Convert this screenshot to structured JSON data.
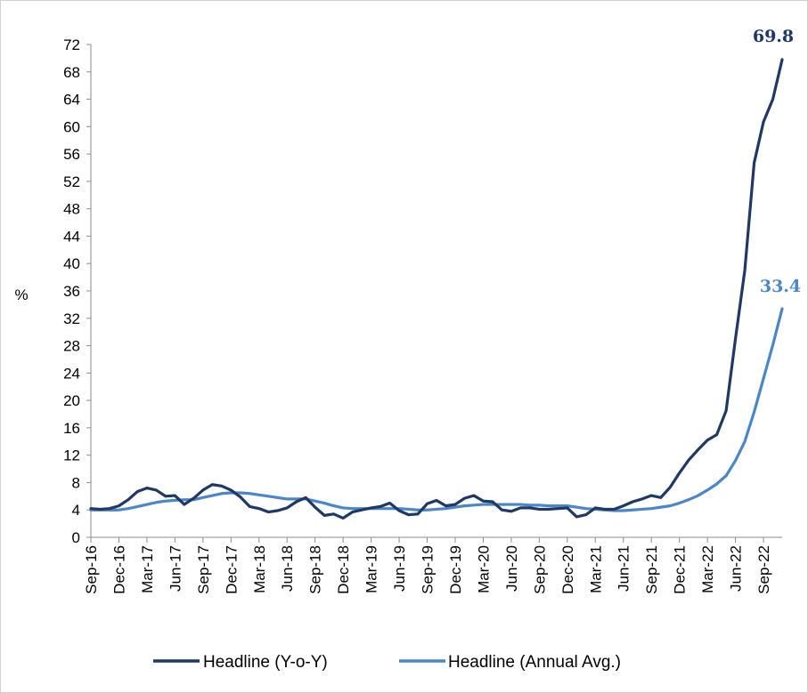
{
  "chart_data": {
    "type": "line",
    "ylabel": "%",
    "ylim": [
      0,
      72
    ],
    "yticks": [
      "0",
      "4",
      "8",
      "12",
      "16",
      "20",
      "24",
      "28",
      "32",
      "36",
      "40",
      "44",
      "48",
      "52",
      "56",
      "60",
      "64",
      "68",
      "72"
    ],
    "x_tick_labels": [
      "Sep-16",
      "Dec-16",
      "Mar-17",
      "Jun-17",
      "Sep-17",
      "Dec-17",
      "Mar-18",
      "Jun-18",
      "Sep-18",
      "Dec-18",
      "Mar-19",
      "Jun-19",
      "Sep-19",
      "Dec-19",
      "Mar-20",
      "Jun-20",
      "Sep-20",
      "Dec-20",
      "Mar-21",
      "Jun-21",
      "Sep-21",
      "Dec-21",
      "Mar-22",
      "Jun-22",
      "Sep-22"
    ],
    "x_start": "Sep-16",
    "x_end": "Sep-22",
    "grid": false,
    "legend_position": "bottom",
    "series": [
      {
        "name": "Headline (Y-o-Y)",
        "color": "#1f3864",
        "end_label": "69.8",
        "values": [
          4.2,
          4.1,
          4.2,
          4.6,
          5.5,
          6.7,
          7.2,
          6.9,
          6.0,
          6.1,
          4.8,
          5.7,
          6.9,
          7.7,
          7.5,
          6.9,
          5.9,
          4.5,
          4.2,
          3.7,
          3.9,
          4.3,
          5.2,
          5.8,
          4.4,
          3.2,
          3.4,
          2.8,
          3.7,
          4.0,
          4.3,
          4.5,
          5.0,
          3.9,
          3.3,
          3.4,
          4.9,
          5.4,
          4.6,
          4.8,
          5.7,
          6.1,
          5.3,
          5.2,
          4.0,
          3.8,
          4.3,
          4.3,
          4.1,
          4.1,
          4.2,
          4.3,
          3.0,
          3.3,
          4.3,
          4.1,
          4.1,
          4.6,
          5.2,
          5.6,
          6.1,
          5.8,
          7.3,
          9.4,
          11.3,
          12.8,
          14.2,
          15.0,
          18.5,
          29.0,
          39.0,
          54.7,
          60.7,
          64.0,
          69.8
        ]
      },
      {
        "name": "Headline (Annual Avg.)",
        "color": "#4a86c8",
        "end_label": "33.4",
        "values": [
          4.0,
          4.0,
          4.0,
          4.0,
          4.2,
          4.5,
          4.8,
          5.1,
          5.3,
          5.4,
          5.5,
          5.5,
          5.8,
          6.1,
          6.4,
          6.5,
          6.5,
          6.4,
          6.2,
          6.0,
          5.8,
          5.6,
          5.6,
          5.6,
          5.3,
          5.0,
          4.6,
          4.3,
          4.2,
          4.2,
          4.2,
          4.2,
          4.2,
          4.2,
          4.1,
          4.0,
          4.0,
          4.1,
          4.2,
          4.4,
          4.6,
          4.7,
          4.8,
          4.8,
          4.8,
          4.8,
          4.8,
          4.7,
          4.7,
          4.6,
          4.6,
          4.6,
          4.4,
          4.2,
          4.1,
          4.0,
          3.9,
          3.9,
          4.0,
          4.1,
          4.2,
          4.4,
          4.6,
          5.0,
          5.5,
          6.1,
          6.9,
          7.8,
          9.0,
          11.2,
          14.0,
          18.3,
          23.2,
          28.1,
          33.4
        ]
      }
    ]
  }
}
